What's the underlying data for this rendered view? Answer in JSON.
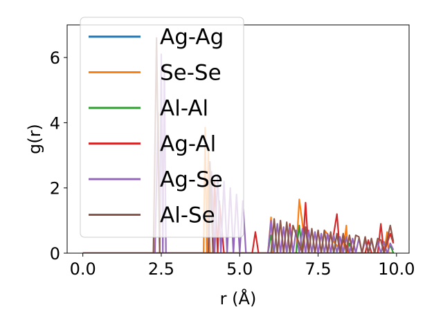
{
  "chart_data": {
    "type": "line",
    "title": "",
    "xlabel": "r (Å)",
    "ylabel": "g(r)",
    "xlim": [
      -0.5,
      10.4
    ],
    "ylim": [
      0,
      7
    ],
    "xticks": [
      0.0,
      2.5,
      5.0,
      7.5,
      10.0
    ],
    "xtick_labels": [
      "0.0",
      "2.5",
      "5.0",
      "7.5",
      "10.0"
    ],
    "yticks": [
      0,
      2,
      4,
      6
    ],
    "ytick_labels": [
      "0",
      "2",
      "4",
      "6"
    ],
    "grid": false,
    "legend_position": "top-left",
    "series": [
      {
        "name": "Ag-Ag",
        "color": "#1f77b4",
        "x": [
          0.0,
          9.9
        ],
        "y": [
          0.0,
          0.0
        ]
      },
      {
        "name": "Se-Se",
        "color": "#ff7f0e",
        "x": [
          0.0,
          3.85,
          3.9,
          3.95,
          4.0,
          4.05,
          4.1,
          5.9,
          6.0,
          6.05,
          6.1,
          6.8,
          6.9,
          7.0,
          7.1,
          7.6,
          7.7,
          8.3,
          8.4,
          8.45,
          8.5,
          9.6,
          9.7,
          9.75,
          9.8,
          9.9
        ],
        "y": [
          0.0,
          0.0,
          3.85,
          0.0,
          3.2,
          0.0,
          0.0,
          0.0,
          1.1,
          0.0,
          0.0,
          0.0,
          1.65,
          0.9,
          0.0,
          0.0,
          0.7,
          0.0,
          0.85,
          0.0,
          0.0,
          0.0,
          0.65,
          0.0,
          0.0,
          0.0
        ]
      },
      {
        "name": "Al-Al",
        "color": "#2ca02c",
        "x": [
          0.0,
          5.9,
          6.0,
          6.1,
          6.8,
          6.9,
          7.0,
          8.4,
          8.5,
          8.6,
          9.7,
          9.8,
          9.9
        ],
        "y": [
          0.0,
          0.0,
          0.55,
          0.0,
          0.0,
          0.85,
          0.0,
          0.0,
          0.3,
          0.0,
          0.0,
          0.25,
          0.0
        ]
      },
      {
        "name": "Ag-Al",
        "color": "#d62728",
        "x": [
          0.0,
          4.15,
          4.2,
          4.3,
          4.35,
          4.5,
          5.4,
          5.5,
          5.6,
          6.5,
          6.6,
          6.7,
          7.0,
          7.1,
          7.2,
          7.9,
          8.1,
          8.2,
          8.3,
          8.5,
          9.0,
          9.1,
          9.2,
          9.4,
          9.5,
          9.6,
          9.8,
          9.9
        ],
        "y": [
          0.0,
          0.0,
          2.2,
          0.0,
          1.6,
          0.0,
          0.0,
          0.65,
          0.0,
          0.0,
          0.9,
          0.0,
          0.0,
          1.55,
          0.0,
          0.0,
          1.2,
          0.0,
          0.4,
          0.0,
          0.0,
          0.4,
          0.0,
          0.0,
          0.9,
          0.0,
          0.6,
          0.3
        ]
      },
      {
        "name": "Ag-Se",
        "color": "#9467bd",
        "x": [
          0.0,
          2.3,
          2.4,
          2.45,
          2.5,
          2.55,
          2.6,
          2.65,
          2.7,
          4.0,
          4.1,
          4.2,
          4.3,
          4.4,
          4.5,
          4.6,
          4.7,
          4.8,
          4.9,
          5.0,
          5.1,
          5.2,
          5.9,
          6.0,
          6.1,
          6.2,
          6.3,
          6.4,
          6.5,
          6.6,
          6.7,
          6.8,
          6.9,
          7.0,
          7.1,
          7.2,
          7.3,
          7.4,
          7.5,
          7.6,
          7.7,
          7.8,
          7.9,
          8.0,
          8.1,
          8.2,
          8.3,
          8.4,
          8.5,
          8.6,
          8.7,
          8.8,
          8.9,
          9.0,
          9.1,
          9.2,
          9.3,
          9.4,
          9.5,
          9.6,
          9.7,
          9.8,
          9.9
        ],
        "y": [
          0.0,
          0.0,
          4.3,
          0.0,
          6.1,
          0.0,
          5.7,
          0.0,
          0.0,
          0.0,
          2.5,
          0.0,
          2.4,
          0.0,
          2.2,
          0.0,
          2.0,
          0.0,
          1.8,
          0.0,
          1.6,
          0.0,
          0.0,
          1.0,
          0.0,
          0.9,
          0.0,
          0.8,
          0.0,
          0.8,
          0.0,
          0.7,
          0.0,
          0.75,
          0.0,
          0.7,
          0.0,
          0.65,
          0.0,
          0.6,
          0.0,
          0.6,
          0.0,
          0.55,
          0.0,
          0.5,
          0.0,
          0.5,
          0.0,
          0.45,
          0.0,
          0.45,
          0.0,
          0.4,
          0.0,
          0.4,
          0.0,
          0.35,
          0.0,
          0.35,
          0.0,
          0.3,
          0.1
        ]
      },
      {
        "name": "Al-Se",
        "color": "#8c564b",
        "x": [
          0.0,
          2.25,
          2.35,
          2.45,
          4.0,
          4.05,
          4.15,
          6.0,
          6.1,
          6.2,
          6.3,
          6.4,
          6.5,
          6.6,
          6.7,
          7.0,
          7.1,
          7.2,
          7.3,
          7.4,
          7.5,
          7.6,
          7.7,
          7.8,
          7.9,
          8.0,
          8.1,
          8.2,
          8.3,
          8.4,
          8.5,
          8.6,
          8.7,
          8.8,
          8.9,
          9.0,
          9.1,
          9.2,
          9.3,
          9.4,
          9.5,
          9.6,
          9.7,
          9.8,
          9.9
        ],
        "y": [
          0.0,
          0.0,
          6.6,
          0.0,
          0.0,
          2.8,
          0.0,
          0.0,
          1.05,
          0.0,
          1.0,
          0.0,
          0.95,
          0.0,
          0.85,
          0.0,
          0.8,
          0.0,
          0.75,
          0.0,
          0.7,
          0.0,
          0.7,
          0.0,
          0.65,
          0.0,
          0.6,
          0.0,
          0.6,
          0.0,
          0.55,
          0.0,
          0.55,
          0.5,
          0.0,
          0.5,
          0.0,
          0.45,
          0.0,
          0.45,
          0.4,
          0.0,
          0.4,
          0.85,
          0.35
        ]
      }
    ]
  }
}
